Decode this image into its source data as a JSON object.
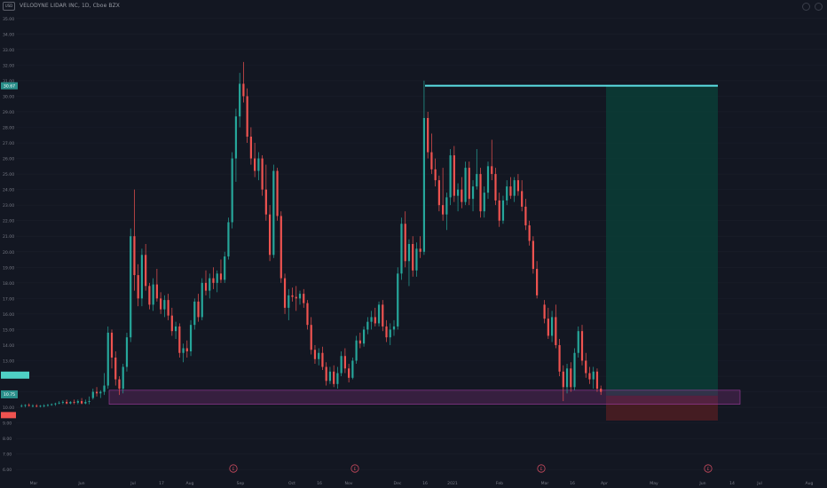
{
  "header": {
    "title": "VELODYNE LIDAR INC, 1D, Cboe BZX",
    "badge": "USD"
  },
  "colors": {
    "background": "#131722",
    "up": "#26a69a",
    "down": "#ef5350",
    "target_line": "#5ce1e6",
    "profit_zone": "#0b3d36",
    "loss_zone": "#4a1d22",
    "support_zone": "#6b2e6b"
  },
  "price_labels": {
    "target": "30.67",
    "entry": "10.75"
  },
  "earnings_marker": "E",
  "chart_data": {
    "type": "candlestick",
    "title": "VELODYNE LIDAR INC, 1D, Cboe BZX",
    "ylim": [
      5.5,
      35.5
    ],
    "y_ticks": [
      "35.00",
      "34.00",
      "33.00",
      "32.00",
      "31.00",
      "30.00",
      "29.00",
      "28.00",
      "27.00",
      "26.00",
      "25.00",
      "24.00",
      "23.00",
      "22.00",
      "21.00",
      "20.00",
      "19.00",
      "18.00",
      "17.00",
      "16.00",
      "15.00",
      "14.00",
      "13.00",
      "12.00",
      "11.00",
      "10.00",
      "9.00",
      "8.00",
      "7.00",
      "6.00"
    ],
    "x_ticks": [
      "Mar",
      "Jun",
      "Jul",
      "17",
      "Aug",
      "Sep",
      "Oct",
      "16",
      "Nov",
      "Dec",
      "16",
      "2021",
      "Feb",
      "Mar",
      "16",
      "Apr",
      "May",
      "Jun",
      "14",
      "Jul",
      "Aug"
    ],
    "series": [
      {
        "x": 2,
        "o": 10.1,
        "h": 10.2,
        "l": 10.0,
        "c": 10.1
      },
      {
        "x": 4,
        "o": 10.1,
        "h": 10.2,
        "l": 10.0,
        "c": 10.15
      },
      {
        "x": 6,
        "o": 10.15,
        "h": 10.25,
        "l": 10.05,
        "c": 10.1
      },
      {
        "x": 8,
        "o": 10.1,
        "h": 10.2,
        "l": 10.0,
        "c": 10.1
      },
      {
        "x": 10,
        "o": 10.1,
        "h": 10.2,
        "l": 10.0,
        "c": 10.05
      },
      {
        "x": 12,
        "o": 10.05,
        "h": 10.15,
        "l": 10.0,
        "c": 10.1
      },
      {
        "x": 14,
        "o": 10.1,
        "h": 10.2,
        "l": 10.0,
        "c": 10.12
      },
      {
        "x": 16,
        "o": 10.12,
        "h": 10.22,
        "l": 10.05,
        "c": 10.15
      },
      {
        "x": 18,
        "o": 10.15,
        "h": 10.25,
        "l": 10.1,
        "c": 10.2
      },
      {
        "x": 20,
        "o": 10.2,
        "h": 10.3,
        "l": 10.1,
        "c": 10.25
      },
      {
        "x": 22,
        "o": 10.25,
        "h": 10.4,
        "l": 10.2,
        "c": 10.3
      },
      {
        "x": 24,
        "o": 10.3,
        "h": 10.45,
        "l": 10.2,
        "c": 10.35
      },
      {
        "x": 26,
        "o": 10.35,
        "h": 10.5,
        "l": 10.2,
        "c": 10.25
      },
      {
        "x": 28,
        "o": 10.25,
        "h": 10.4,
        "l": 10.2,
        "c": 10.35
      },
      {
        "x": 30,
        "o": 10.35,
        "h": 10.5,
        "l": 10.2,
        "c": 10.3
      },
      {
        "x": 32,
        "o": 10.3,
        "h": 10.5,
        "l": 10.2,
        "c": 10.4
      },
      {
        "x": 34,
        "o": 10.4,
        "h": 10.6,
        "l": 10.2,
        "c": 10.25
      },
      {
        "x": 36,
        "o": 10.25,
        "h": 10.5,
        "l": 10.2,
        "c": 10.35
      },
      {
        "x": 38,
        "o": 10.35,
        "h": 10.7,
        "l": 10.2,
        "c": 10.4
      },
      {
        "x": 40,
        "o": 10.6,
        "h": 11.2,
        "l": 10.5,
        "c": 11.0
      },
      {
        "x": 42,
        "o": 11.0,
        "h": 11.3,
        "l": 10.7,
        "c": 10.9
      },
      {
        "x": 44,
        "o": 10.9,
        "h": 11.1,
        "l": 10.6,
        "c": 11.0
      },
      {
        "x": 46,
        "o": 11.0,
        "h": 12.2,
        "l": 10.8,
        "c": 11.4
      },
      {
        "x": 48,
        "o": 11.4,
        "h": 15.2,
        "l": 11.2,
        "c": 14.8
      },
      {
        "x": 50,
        "o": 14.8,
        "h": 15.0,
        "l": 12.5,
        "c": 13.2
      },
      {
        "x": 52,
        "o": 13.2,
        "h": 13.6,
        "l": 11.4,
        "c": 11.8
      },
      {
        "x": 54,
        "o": 11.8,
        "h": 12.0,
        "l": 10.8,
        "c": 11.2
      },
      {
        "x": 56,
        "o": 11.2,
        "h": 12.8,
        "l": 10.9,
        "c": 12.6
      },
      {
        "x": 58,
        "o": 12.6,
        "h": 14.8,
        "l": 12.3,
        "c": 14.5
      },
      {
        "x": 60,
        "o": 14.5,
        "h": 21.5,
        "l": 14.2,
        "c": 21.0
      },
      {
        "x": 62,
        "o": 21.0,
        "h": 24.0,
        "l": 17.5,
        "c": 18.5
      },
      {
        "x": 64,
        "o": 18.5,
        "h": 19.2,
        "l": 16.5,
        "c": 17.0
      },
      {
        "x": 66,
        "o": 17.0,
        "h": 20.2,
        "l": 16.5,
        "c": 19.8
      },
      {
        "x": 68,
        "o": 19.8,
        "h": 20.5,
        "l": 17.5,
        "c": 17.8
      },
      {
        "x": 70,
        "o": 17.8,
        "h": 18.0,
        "l": 16.3,
        "c": 16.6
      },
      {
        "x": 72,
        "o": 16.6,
        "h": 18.3,
        "l": 16.2,
        "c": 17.9
      },
      {
        "x": 74,
        "o": 17.9,
        "h": 18.9,
        "l": 16.8,
        "c": 17.0
      },
      {
        "x": 76,
        "o": 17.0,
        "h": 17.4,
        "l": 16.0,
        "c": 16.3
      },
      {
        "x": 78,
        "o": 16.3,
        "h": 17.2,
        "l": 15.8,
        "c": 16.9
      },
      {
        "x": 80,
        "o": 16.9,
        "h": 17.3,
        "l": 15.6,
        "c": 15.9
      },
      {
        "x": 82,
        "o": 15.9,
        "h": 16.4,
        "l": 14.6,
        "c": 14.9
      },
      {
        "x": 84,
        "o": 14.9,
        "h": 15.5,
        "l": 14.4,
        "c": 15.2
      },
      {
        "x": 86,
        "o": 15.2,
        "h": 15.4,
        "l": 13.2,
        "c": 13.5
      },
      {
        "x": 88,
        "o": 13.5,
        "h": 14.1,
        "l": 12.9,
        "c": 13.8
      },
      {
        "x": 90,
        "o": 13.8,
        "h": 14.3,
        "l": 13.2,
        "c": 13.6
      },
      {
        "x": 92,
        "o": 13.6,
        "h": 15.6,
        "l": 13.3,
        "c": 15.3
      },
      {
        "x": 94,
        "o": 15.3,
        "h": 17.0,
        "l": 15.0,
        "c": 16.8
      },
      {
        "x": 96,
        "o": 16.8,
        "h": 17.3,
        "l": 15.5,
        "c": 15.8
      },
      {
        "x": 98,
        "o": 15.8,
        "h": 18.3,
        "l": 15.6,
        "c": 18.0
      },
      {
        "x": 100,
        "o": 18.0,
        "h": 18.8,
        "l": 17.2,
        "c": 17.5
      },
      {
        "x": 102,
        "o": 17.5,
        "h": 18.6,
        "l": 17.0,
        "c": 18.3
      },
      {
        "x": 104,
        "o": 18.3,
        "h": 19.0,
        "l": 17.6,
        "c": 18.0
      },
      {
        "x": 106,
        "o": 18.0,
        "h": 18.8,
        "l": 17.4,
        "c": 18.6
      },
      {
        "x": 108,
        "o": 18.6,
        "h": 19.5,
        "l": 18.0,
        "c": 18.2
      },
      {
        "x": 110,
        "o": 18.2,
        "h": 20.0,
        "l": 18.0,
        "c": 19.7
      },
      {
        "x": 112,
        "o": 19.7,
        "h": 22.2,
        "l": 19.5,
        "c": 21.9
      },
      {
        "x": 114,
        "o": 21.9,
        "h": 26.4,
        "l": 21.5,
        "c": 26.0
      },
      {
        "x": 116,
        "o": 26.0,
        "h": 29.2,
        "l": 24.5,
        "c": 28.7
      },
      {
        "x": 118,
        "o": 28.7,
        "h": 31.5,
        "l": 28.0,
        "c": 30.8
      },
      {
        "x": 120,
        "o": 30.8,
        "h": 32.2,
        "l": 29.6,
        "c": 30.0
      },
      {
        "x": 122,
        "o": 30.0,
        "h": 30.5,
        "l": 27.0,
        "c": 27.4
      },
      {
        "x": 124,
        "o": 27.4,
        "h": 28.0,
        "l": 25.6,
        "c": 26.0
      },
      {
        "x": 126,
        "o": 26.0,
        "h": 27.0,
        "l": 24.8,
        "c": 25.2
      },
      {
        "x": 128,
        "o": 25.2,
        "h": 26.4,
        "l": 24.6,
        "c": 26.0
      },
      {
        "x": 130,
        "o": 26.0,
        "h": 26.2,
        "l": 23.6,
        "c": 24.0
      },
      {
        "x": 132,
        "o": 24.0,
        "h": 25.6,
        "l": 22.0,
        "c": 22.4
      },
      {
        "x": 134,
        "o": 22.4,
        "h": 23.0,
        "l": 19.4,
        "c": 19.8
      },
      {
        "x": 136,
        "o": 19.8,
        "h": 25.6,
        "l": 19.6,
        "c": 25.2
      },
      {
        "x": 138,
        "o": 25.2,
        "h": 25.4,
        "l": 22.0,
        "c": 22.3
      },
      {
        "x": 140,
        "o": 22.3,
        "h": 22.6,
        "l": 18.0,
        "c": 18.3
      },
      {
        "x": 142,
        "o": 18.3,
        "h": 18.6,
        "l": 16.0,
        "c": 16.4
      },
      {
        "x": 144,
        "o": 16.4,
        "h": 17.6,
        "l": 15.6,
        "c": 17.2
      },
      {
        "x": 146,
        "o": 17.2,
        "h": 17.7,
        "l": 16.8,
        "c": 17.1
      },
      {
        "x": 148,
        "o": 17.1,
        "h": 17.8,
        "l": 16.2,
        "c": 17.0
      },
      {
        "x": 150,
        "o": 17.0,
        "h": 17.5,
        "l": 16.6,
        "c": 17.3
      },
      {
        "x": 152,
        "o": 17.3,
        "h": 17.6,
        "l": 16.4,
        "c": 16.7
      },
      {
        "x": 154,
        "o": 16.7,
        "h": 16.9,
        "l": 15.0,
        "c": 15.3
      },
      {
        "x": 156,
        "o": 15.3,
        "h": 15.8,
        "l": 13.4,
        "c": 13.7
      },
      {
        "x": 158,
        "o": 13.7,
        "h": 14.0,
        "l": 12.8,
        "c": 13.1
      },
      {
        "x": 160,
        "o": 13.1,
        "h": 13.8,
        "l": 12.7,
        "c": 13.5
      },
      {
        "x": 162,
        "o": 13.5,
        "h": 13.9,
        "l": 12.4,
        "c": 12.6
      },
      {
        "x": 164,
        "o": 12.6,
        "h": 12.9,
        "l": 11.4,
        "c": 11.7
      },
      {
        "x": 166,
        "o": 11.7,
        "h": 12.6,
        "l": 11.5,
        "c": 12.3
      },
      {
        "x": 168,
        "o": 12.3,
        "h": 12.7,
        "l": 11.3,
        "c": 11.5
      },
      {
        "x": 170,
        "o": 11.5,
        "h": 12.6,
        "l": 11.2,
        "c": 12.2
      },
      {
        "x": 172,
        "o": 12.2,
        "h": 13.6,
        "l": 12.0,
        "c": 13.3
      },
      {
        "x": 174,
        "o": 13.3,
        "h": 13.8,
        "l": 12.2,
        "c": 12.5
      },
      {
        "x": 176,
        "o": 12.5,
        "h": 12.8,
        "l": 11.6,
        "c": 11.9
      },
      {
        "x": 178,
        "o": 11.9,
        "h": 13.2,
        "l": 11.8,
        "c": 13.0
      },
      {
        "x": 180,
        "o": 13.0,
        "h": 14.6,
        "l": 12.8,
        "c": 14.3
      },
      {
        "x": 182,
        "o": 14.3,
        "h": 14.8,
        "l": 13.8,
        "c": 14.1
      },
      {
        "x": 184,
        "o": 14.1,
        "h": 15.2,
        "l": 13.9,
        "c": 15.0
      },
      {
        "x": 186,
        "o": 15.0,
        "h": 15.8,
        "l": 14.7,
        "c": 15.5
      },
      {
        "x": 188,
        "o": 15.5,
        "h": 16.2,
        "l": 15.0,
        "c": 15.8
      },
      {
        "x": 190,
        "o": 15.8,
        "h": 16.4,
        "l": 15.2,
        "c": 15.4
      },
      {
        "x": 192,
        "o": 15.4,
        "h": 16.8,
        "l": 15.2,
        "c": 16.6
      },
      {
        "x": 194,
        "o": 16.6,
        "h": 16.9,
        "l": 14.9,
        "c": 15.2
      },
      {
        "x": 196,
        "o": 15.2,
        "h": 15.6,
        "l": 14.2,
        "c": 14.5
      },
      {
        "x": 198,
        "o": 14.5,
        "h": 15.4,
        "l": 14.0,
        "c": 15.0
      },
      {
        "x": 200,
        "o": 15.0,
        "h": 15.6,
        "l": 14.6,
        "c": 15.2
      },
      {
        "x": 202,
        "o": 15.2,
        "h": 19.0,
        "l": 15.0,
        "c": 18.6
      },
      {
        "x": 204,
        "o": 18.6,
        "h": 22.2,
        "l": 18.2,
        "c": 21.8
      },
      {
        "x": 206,
        "o": 21.8,
        "h": 22.6,
        "l": 19.0,
        "c": 19.4
      },
      {
        "x": 208,
        "o": 19.4,
        "h": 20.8,
        "l": 17.8,
        "c": 20.5
      },
      {
        "x": 210,
        "o": 20.5,
        "h": 21.0,
        "l": 18.4,
        "c": 18.8
      },
      {
        "x": 212,
        "o": 18.8,
        "h": 20.6,
        "l": 18.4,
        "c": 20.2
      },
      {
        "x": 214,
        "o": 20.2,
        "h": 21.0,
        "l": 19.6,
        "c": 20.0
      },
      {
        "x": 216,
        "o": 20.0,
        "h": 31.0,
        "l": 19.8,
        "c": 28.6
      },
      {
        "x": 218,
        "o": 28.6,
        "h": 29.0,
        "l": 26.0,
        "c": 26.4
      },
      {
        "x": 220,
        "o": 26.4,
        "h": 27.6,
        "l": 25.0,
        "c": 25.3
      },
      {
        "x": 222,
        "o": 25.3,
        "h": 26.0,
        "l": 24.2,
        "c": 24.6
      },
      {
        "x": 224,
        "o": 24.6,
        "h": 24.9,
        "l": 22.6,
        "c": 23.0
      },
      {
        "x": 226,
        "o": 23.0,
        "h": 25.4,
        "l": 22.0,
        "c": 22.4
      },
      {
        "x": 228,
        "o": 22.4,
        "h": 23.8,
        "l": 21.4,
        "c": 23.5
      },
      {
        "x": 230,
        "o": 23.5,
        "h": 26.6,
        "l": 23.0,
        "c": 26.2
      },
      {
        "x": 232,
        "o": 26.2,
        "h": 26.8,
        "l": 23.2,
        "c": 23.6
      },
      {
        "x": 234,
        "o": 23.6,
        "h": 24.4,
        "l": 22.6,
        "c": 24.0
      },
      {
        "x": 236,
        "o": 24.0,
        "h": 24.8,
        "l": 22.8,
        "c": 23.2
      },
      {
        "x": 238,
        "o": 23.2,
        "h": 25.8,
        "l": 23.0,
        "c": 25.4
      },
      {
        "x": 240,
        "o": 25.4,
        "h": 25.8,
        "l": 23.0,
        "c": 23.4
      },
      {
        "x": 242,
        "o": 23.4,
        "h": 24.6,
        "l": 22.6,
        "c": 24.2
      },
      {
        "x": 244,
        "o": 24.2,
        "h": 26.6,
        "l": 24.0,
        "c": 25.0
      },
      {
        "x": 246,
        "o": 25.0,
        "h": 25.4,
        "l": 22.2,
        "c": 22.6
      },
      {
        "x": 248,
        "o": 22.6,
        "h": 24.2,
        "l": 22.2,
        "c": 23.8
      },
      {
        "x": 250,
        "o": 23.8,
        "h": 25.8,
        "l": 23.4,
        "c": 25.5
      },
      {
        "x": 252,
        "o": 25.5,
        "h": 27.2,
        "l": 24.6,
        "c": 25.0
      },
      {
        "x": 254,
        "o": 25.0,
        "h": 25.4,
        "l": 23.0,
        "c": 23.3
      },
      {
        "x": 256,
        "o": 23.3,
        "h": 23.8,
        "l": 21.6,
        "c": 22.0
      },
      {
        "x": 258,
        "o": 22.0,
        "h": 23.6,
        "l": 21.8,
        "c": 23.3
      },
      {
        "x": 260,
        "o": 23.3,
        "h": 24.6,
        "l": 23.0,
        "c": 24.2
      },
      {
        "x": 262,
        "o": 24.2,
        "h": 24.8,
        "l": 23.4,
        "c": 23.6
      },
      {
        "x": 264,
        "o": 23.6,
        "h": 24.8,
        "l": 23.2,
        "c": 24.6
      },
      {
        "x": 266,
        "o": 24.6,
        "h": 25.0,
        "l": 23.6,
        "c": 23.9
      },
      {
        "x": 268,
        "o": 23.9,
        "h": 24.6,
        "l": 22.6,
        "c": 22.9
      },
      {
        "x": 270,
        "o": 22.9,
        "h": 23.4,
        "l": 21.4,
        "c": 21.7
      },
      {
        "x": 272,
        "o": 21.7,
        "h": 22.0,
        "l": 20.4,
        "c": 20.7
      },
      {
        "x": 274,
        "o": 20.7,
        "h": 21.0,
        "l": 18.6,
        "c": 18.9
      },
      {
        "x": 276,
        "o": 18.9,
        "h": 19.4,
        "l": 17.0,
        "c": 17.2
      },
      {
        "x": 280,
        "o": 16.6,
        "h": 16.9,
        "l": 15.4,
        "c": 15.7
      },
      {
        "x": 282,
        "o": 15.7,
        "h": 16.4,
        "l": 14.4,
        "c": 14.6
      },
      {
        "x": 284,
        "o": 14.6,
        "h": 16.2,
        "l": 14.2,
        "c": 15.8
      },
      {
        "x": 286,
        "o": 15.8,
        "h": 16.6,
        "l": 13.8,
        "c": 14.0
      },
      {
        "x": 288,
        "o": 14.0,
        "h": 14.4,
        "l": 12.0,
        "c": 12.3
      },
      {
        "x": 290,
        "o": 12.3,
        "h": 12.7,
        "l": 10.4,
        "c": 11.3
      },
      {
        "x": 292,
        "o": 11.3,
        "h": 12.8,
        "l": 10.9,
        "c": 12.5
      },
      {
        "x": 294,
        "o": 12.5,
        "h": 12.9,
        "l": 11.0,
        "c": 11.3
      },
      {
        "x": 296,
        "o": 11.3,
        "h": 13.8,
        "l": 11.1,
        "c": 13.5
      },
      {
        "x": 298,
        "o": 13.5,
        "h": 15.2,
        "l": 13.2,
        "c": 14.9
      },
      {
        "x": 300,
        "o": 14.9,
        "h": 15.3,
        "l": 12.7,
        "c": 13.0
      },
      {
        "x": 302,
        "o": 13.0,
        "h": 13.5,
        "l": 11.9,
        "c": 12.2
      },
      {
        "x": 304,
        "o": 12.2,
        "h": 12.6,
        "l": 11.5,
        "c": 11.8
      },
      {
        "x": 306,
        "o": 11.8,
        "h": 12.6,
        "l": 11.2,
        "c": 12.3
      },
      {
        "x": 308,
        "o": 12.3,
        "h": 12.5,
        "l": 11.0,
        "c": 11.2
      },
      {
        "x": 310,
        "o": 11.2,
        "h": 11.4,
        "l": 10.8,
        "c": 11.0
      }
    ]
  }
}
